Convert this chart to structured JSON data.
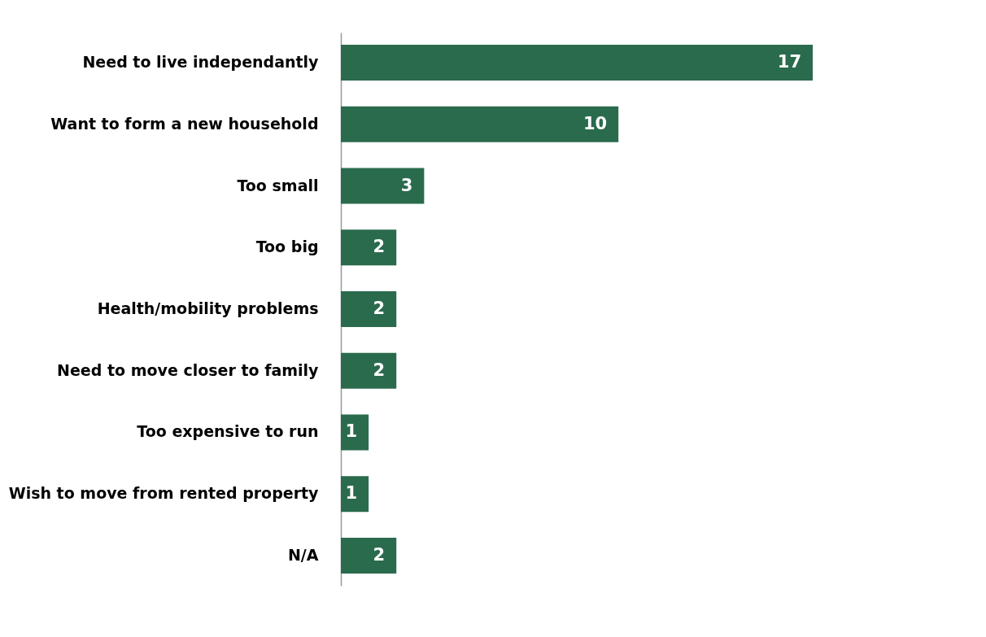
{
  "chart_data": {
    "type": "bar",
    "orientation": "horizontal",
    "categories": [
      "Need to live independantly",
      "Want to form a new household",
      "Too small",
      "Too big",
      "Health/mobility problems",
      "Need to move closer to family",
      "Too expensive to run",
      "Wish to move from rented property",
      "N/A"
    ],
    "values": [
      17,
      10,
      3,
      2,
      2,
      2,
      1,
      1,
      2
    ],
    "color": "#2a6b4d",
    "data_labels": true
  }
}
